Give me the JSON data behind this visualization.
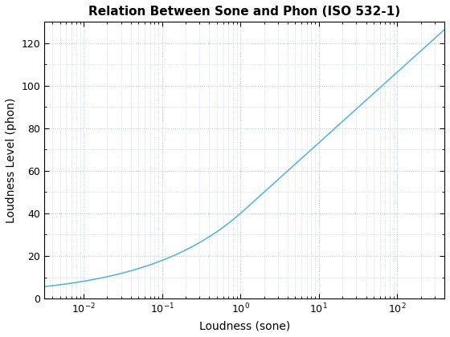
{
  "title": "Relation Between Sone and Phon (ISO 532-1)",
  "xlabel": "Loudness (sone)",
  "ylabel": "Loudness Level (phon)",
  "line_color": "#5BB8D4",
  "xlim_log": [
    -2.5,
    2.6
  ],
  "ylim": [
    0,
    130
  ],
  "background_color": "#ffffff",
  "grid_color": "#c0c8d8",
  "title_fontsize": 11,
  "label_fontsize": 10
}
